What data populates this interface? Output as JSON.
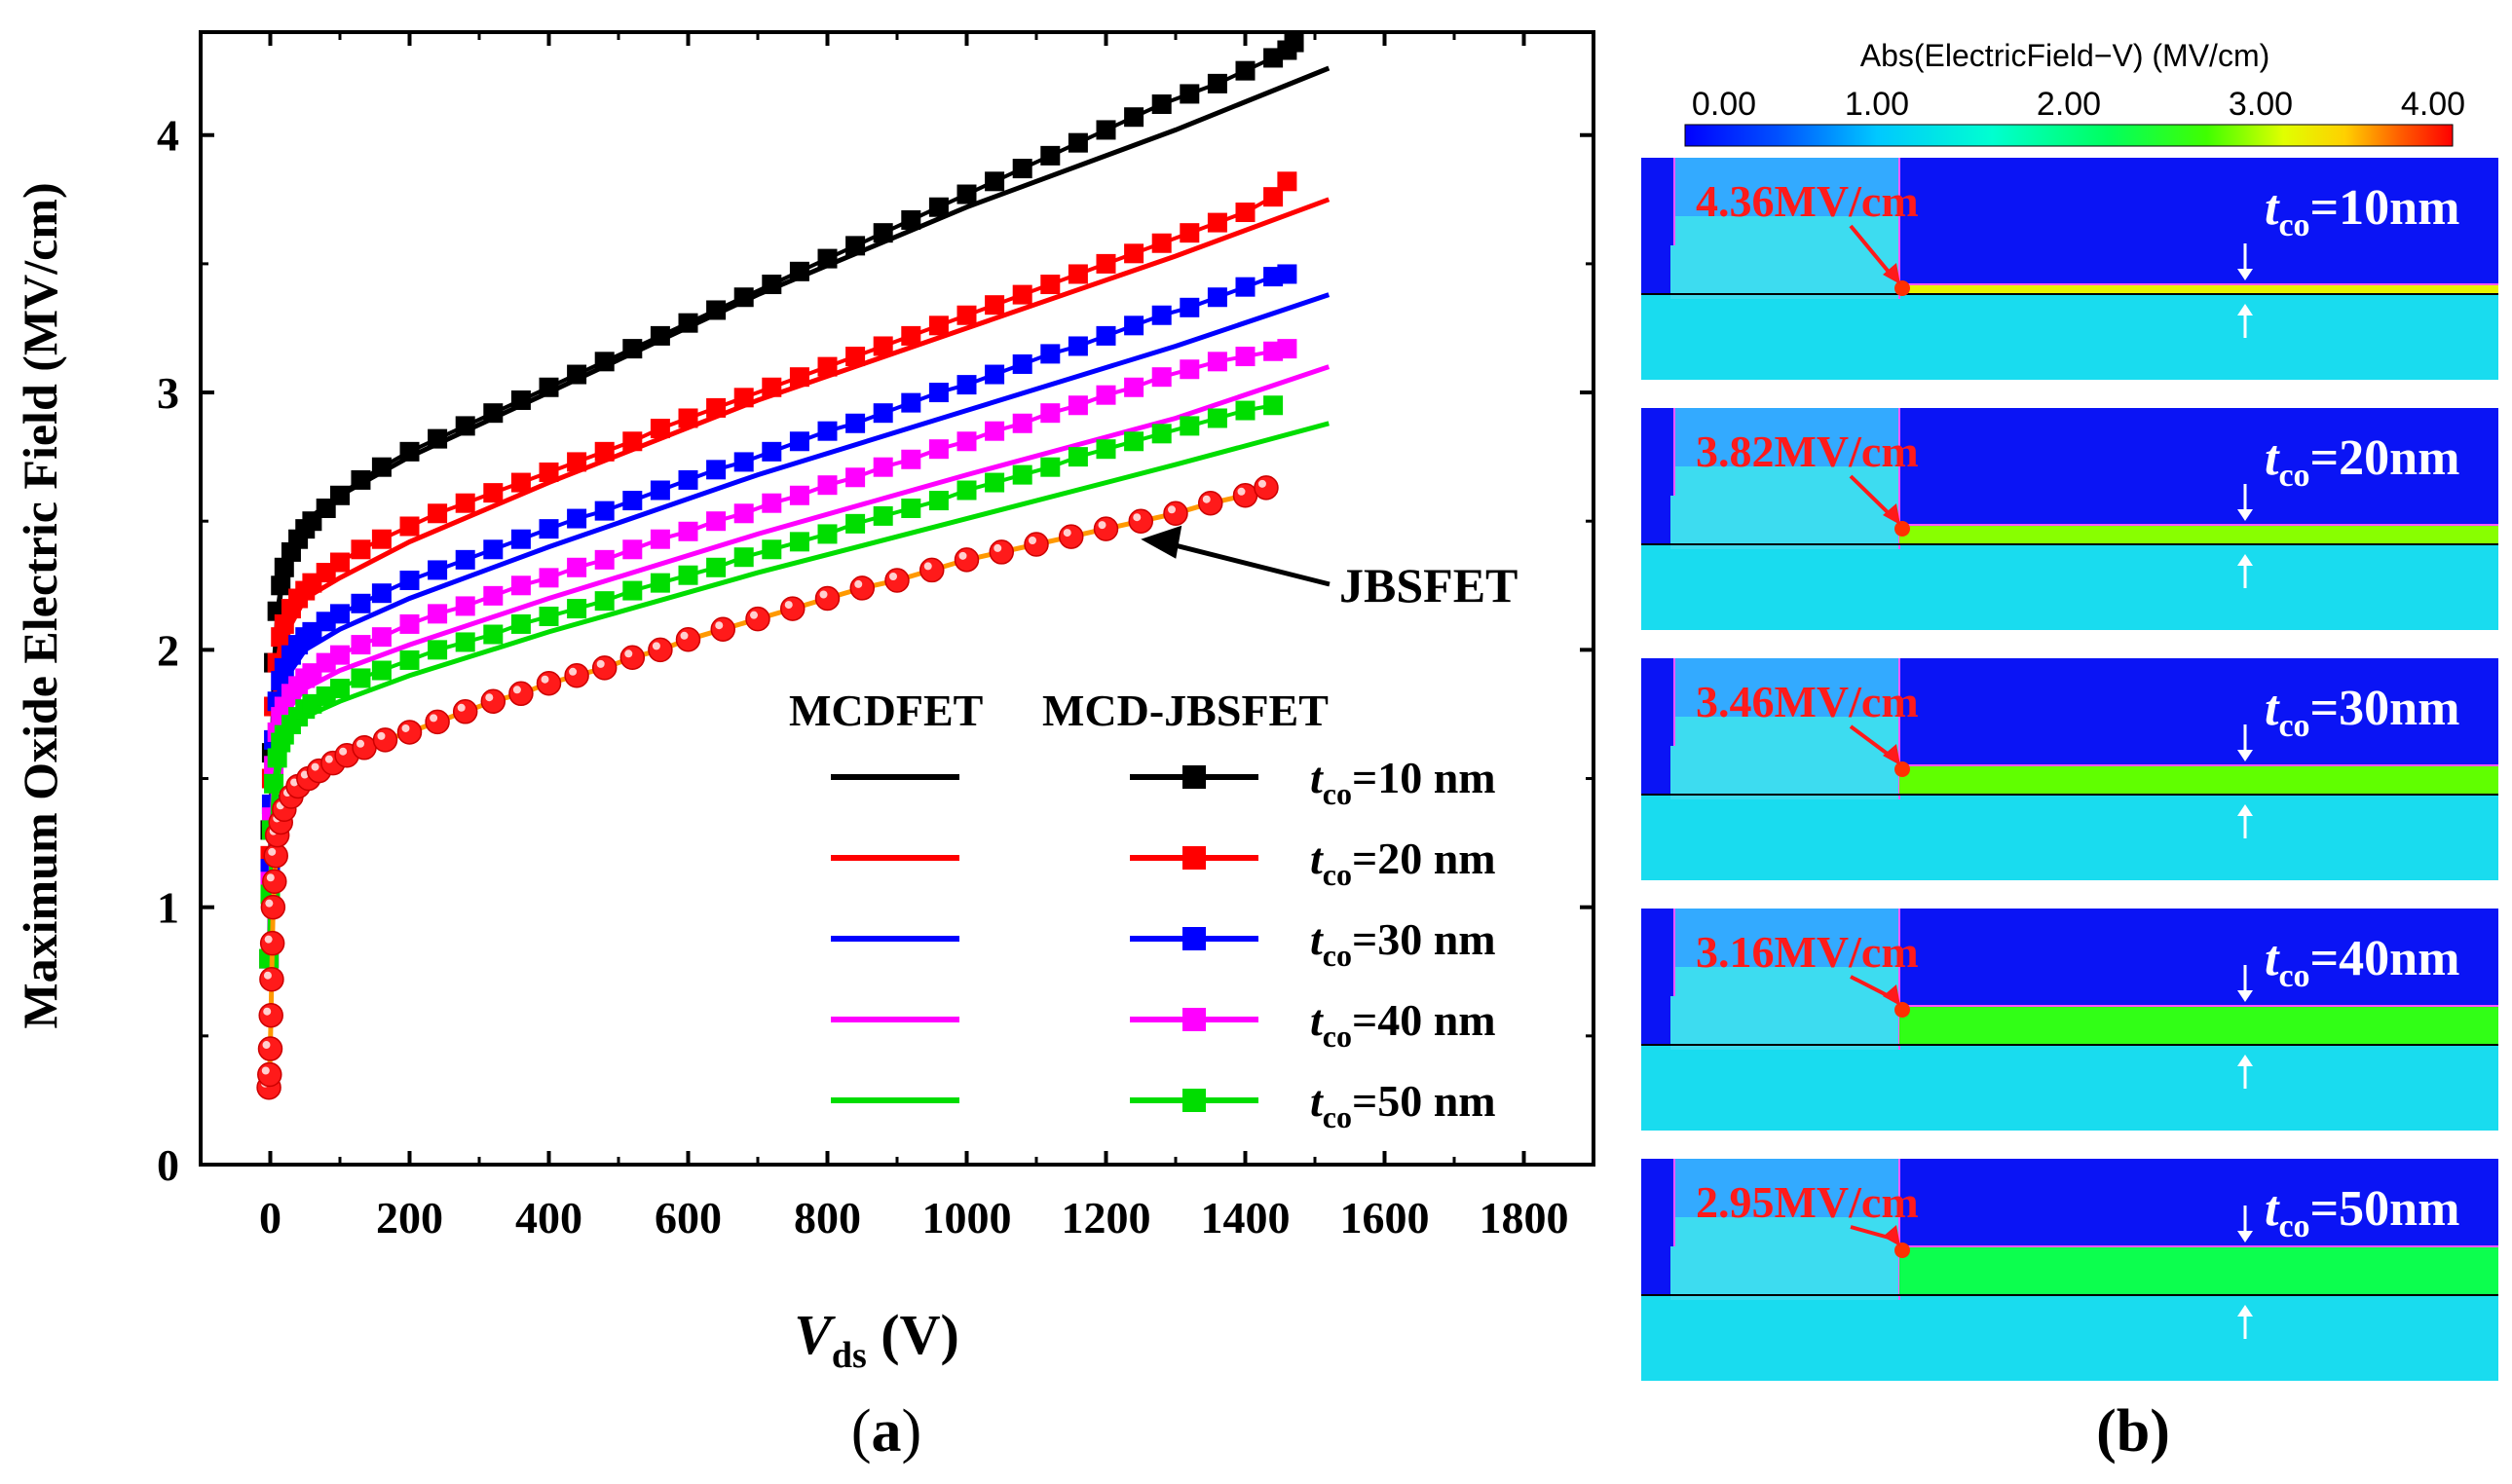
{
  "panel_a": {
    "label_open": "(",
    "label_letter": "a",
    "label_close": ")"
  },
  "panel_b": {
    "label": "(b)",
    "colorbar": {
      "title": "Abs(ElectricField−V) (MV/cm)",
      "ticks": [
        "0.00",
        "1.00",
        "2.00",
        "3.00",
        "4.00"
      ],
      "range": [
        0,
        4
      ]
    },
    "maps": [
      {
        "peak": "4.36MV/cm",
        "t_prefix": "t",
        "t_sub": "co",
        "t_value": "=10nm",
        "channel_value": 3.2
      },
      {
        "peak": "3.82MV/cm",
        "t_prefix": "t",
        "t_sub": "co",
        "t_value": "=20nm",
        "channel_value": 2.9
      },
      {
        "peak": "3.46MV/cm",
        "t_prefix": "t",
        "t_sub": "co",
        "t_value": "=30nm",
        "channel_value": 2.8
      },
      {
        "peak": "3.16MV/cm",
        "t_prefix": "t",
        "t_sub": "co",
        "t_value": "=40nm",
        "channel_value": 2.6
      },
      {
        "peak": "2.95MV/cm",
        "t_prefix": "t",
        "t_sub": "co",
        "t_value": "=50nm",
        "channel_value": 2.3
      }
    ]
  },
  "chart_data": {
    "type": "line",
    "title": "",
    "ylabel": "Maximum Oxide Electric Field (MV/cm)",
    "xlabel_var": "V",
    "xlabel_sub": "ds",
    "xlabel_unit": " (V)",
    "xlim": [
      -100,
      1900
    ],
    "ylim": [
      0,
      4.4
    ],
    "xticks": [
      0,
      200,
      400,
      600,
      800,
      1000,
      1200,
      1400,
      1600,
      1800
    ],
    "yticks": [
      0,
      1,
      2,
      3,
      4
    ],
    "legend": {
      "header_left": "MCDFET",
      "header_right": "MCD-JBSFET",
      "position": "lower-right"
    },
    "annotation": {
      "text": "JBSFET",
      "points_to": [
        1250,
        2.43
      ]
    },
    "series": [
      {
        "name": "t_co=10 nm",
        "t_sub": "co",
        "label_value": "=10 nm",
        "color": "#000000",
        "mcdfet": {
          "x": [
            0,
            5,
            10,
            20,
            50,
            100,
            200,
            400,
            700,
            1000,
            1300,
            1520
          ],
          "y": [
            0.8,
            1.6,
            2.1,
            2.35,
            2.5,
            2.6,
            2.75,
            3.0,
            3.38,
            3.72,
            4.02,
            4.26
          ]
        },
        "jbsfet": {
          "x": [
            -2,
            0,
            2,
            5,
            10,
            15,
            20,
            30,
            40,
            50,
            60,
            80,
            100,
            130,
            160,
            200,
            240,
            280,
            320,
            360,
            400,
            440,
            480,
            520,
            560,
            600,
            640,
            680,
            720,
            760,
            800,
            840,
            880,
            920,
            960,
            1000,
            1040,
            1080,
            1120,
            1160,
            1200,
            1240,
            1280,
            1320,
            1360,
            1400,
            1440,
            1460,
            1470
          ],
          "y": [
            0.8,
            1.3,
            1.6,
            1.95,
            2.15,
            2.25,
            2.32,
            2.38,
            2.43,
            2.47,
            2.5,
            2.55,
            2.6,
            2.66,
            2.71,
            2.77,
            2.82,
            2.87,
            2.92,
            2.97,
            3.02,
            3.07,
            3.12,
            3.17,
            3.22,
            3.27,
            3.32,
            3.37,
            3.42,
            3.47,
            3.52,
            3.57,
            3.62,
            3.67,
            3.72,
            3.77,
            3.82,
            3.87,
            3.92,
            3.97,
            4.02,
            4.07,
            4.12,
            4.16,
            4.2,
            4.25,
            4.3,
            4.33,
            4.36
          ]
        }
      },
      {
        "name": "t_co=20 nm",
        "t_sub": "co",
        "label_value": "=20 nm",
        "color": "#ff0000",
        "mcdfet": {
          "x": [
            0,
            5,
            10,
            20,
            50,
            100,
            200,
            400,
            700,
            1000,
            1300,
            1520
          ],
          "y": [
            0.8,
            1.45,
            1.85,
            2.05,
            2.2,
            2.28,
            2.42,
            2.65,
            2.97,
            3.25,
            3.53,
            3.75
          ]
        },
        "jbsfet": {
          "x": [
            -2,
            0,
            2,
            5,
            10,
            15,
            20,
            30,
            40,
            50,
            60,
            80,
            100,
            130,
            160,
            200,
            240,
            280,
            320,
            360,
            400,
            440,
            480,
            520,
            560,
            600,
            640,
            680,
            720,
            760,
            800,
            840,
            880,
            920,
            960,
            1000,
            1040,
            1080,
            1120,
            1160,
            1200,
            1240,
            1280,
            1320,
            1360,
            1400,
            1440,
            1460
          ],
          "y": [
            0.8,
            1.2,
            1.5,
            1.78,
            1.95,
            2.05,
            2.1,
            2.16,
            2.2,
            2.23,
            2.26,
            2.3,
            2.34,
            2.39,
            2.43,
            2.48,
            2.53,
            2.57,
            2.61,
            2.65,
            2.69,
            2.73,
            2.77,
            2.81,
            2.86,
            2.9,
            2.94,
            2.98,
            3.02,
            3.06,
            3.1,
            3.14,
            3.18,
            3.22,
            3.26,
            3.3,
            3.34,
            3.38,
            3.42,
            3.46,
            3.5,
            3.54,
            3.58,
            3.62,
            3.66,
            3.7,
            3.76,
            3.82
          ]
        }
      },
      {
        "name": "t_co=30 nm",
        "t_sub": "co",
        "label_value": "=30 nm",
        "color": "#0000ff",
        "mcdfet": {
          "x": [
            0,
            5,
            10,
            20,
            50,
            100,
            200,
            400,
            700,
            1000,
            1300,
            1520
          ],
          "y": [
            0.8,
            1.35,
            1.7,
            1.88,
            2.0,
            2.08,
            2.2,
            2.4,
            2.68,
            2.93,
            3.18,
            3.38
          ]
        },
        "jbsfet": {
          "x": [
            -2,
            0,
            2,
            5,
            10,
            15,
            20,
            30,
            40,
            50,
            60,
            80,
            100,
            130,
            160,
            200,
            240,
            280,
            320,
            360,
            400,
            440,
            480,
            520,
            560,
            600,
            640,
            680,
            720,
            760,
            800,
            840,
            880,
            920,
            960,
            1000,
            1040,
            1080,
            1120,
            1160,
            1200,
            1240,
            1280,
            1320,
            1360,
            1400,
            1440,
            1460
          ],
          "y": [
            0.8,
            1.15,
            1.4,
            1.65,
            1.8,
            1.88,
            1.93,
            1.98,
            2.02,
            2.05,
            2.07,
            2.11,
            2.14,
            2.18,
            2.22,
            2.27,
            2.31,
            2.35,
            2.39,
            2.43,
            2.47,
            2.51,
            2.54,
            2.58,
            2.62,
            2.66,
            2.7,
            2.73,
            2.77,
            2.81,
            2.85,
            2.88,
            2.92,
            2.96,
            3.0,
            3.03,
            3.07,
            3.11,
            3.15,
            3.18,
            3.22,
            3.26,
            3.3,
            3.33,
            3.37,
            3.41,
            3.45,
            3.46
          ]
        }
      },
      {
        "name": "t_co=40 nm",
        "t_sub": "co",
        "label_value": "=40 nm",
        "color": "#ff00ff",
        "mcdfet": {
          "x": [
            0,
            5,
            10,
            20,
            50,
            100,
            200,
            400,
            700,
            1000,
            1300,
            1520
          ],
          "y": [
            0.8,
            1.3,
            1.6,
            1.75,
            1.85,
            1.92,
            2.02,
            2.2,
            2.45,
            2.68,
            2.9,
            3.1
          ]
        },
        "jbsfet": {
          "x": [
            -2,
            0,
            2,
            5,
            10,
            15,
            20,
            30,
            40,
            50,
            60,
            80,
            100,
            130,
            160,
            200,
            240,
            280,
            320,
            360,
            400,
            440,
            480,
            520,
            560,
            600,
            640,
            680,
            720,
            760,
            800,
            840,
            880,
            920,
            960,
            1000,
            1040,
            1080,
            1120,
            1160,
            1200,
            1240,
            1280,
            1320,
            1360,
            1400,
            1440,
            1460
          ],
          "y": [
            0.8,
            1.1,
            1.35,
            1.55,
            1.68,
            1.74,
            1.78,
            1.83,
            1.86,
            1.89,
            1.91,
            1.95,
            1.98,
            2.02,
            2.05,
            2.1,
            2.14,
            2.17,
            2.21,
            2.25,
            2.28,
            2.32,
            2.35,
            2.39,
            2.43,
            2.46,
            2.5,
            2.53,
            2.57,
            2.6,
            2.64,
            2.67,
            2.71,
            2.74,
            2.78,
            2.81,
            2.85,
            2.88,
            2.92,
            2.95,
            2.99,
            3.02,
            3.06,
            3.09,
            3.12,
            3.14,
            3.16,
            3.17
          ]
        }
      },
      {
        "name": "t_co=50 nm",
        "t_sub": "co",
        "label_value": "=50 nm",
        "color": "#00dd00",
        "mcdfet": {
          "x": [
            0,
            5,
            10,
            20,
            50,
            100,
            200,
            400,
            700,
            1000,
            1300,
            1520
          ],
          "y": [
            0.8,
            1.25,
            1.5,
            1.65,
            1.74,
            1.8,
            1.9,
            2.07,
            2.3,
            2.51,
            2.72,
            2.88
          ]
        },
        "jbsfet": {
          "x": [
            -2,
            0,
            2,
            5,
            10,
            15,
            20,
            30,
            40,
            50,
            60,
            80,
            100,
            130,
            160,
            200,
            240,
            280,
            320,
            360,
            400,
            440,
            480,
            520,
            560,
            600,
            640,
            680,
            720,
            760,
            800,
            840,
            880,
            920,
            960,
            1000,
            1040,
            1080,
            1120,
            1160,
            1200,
            1240,
            1280,
            1320,
            1360,
            1400,
            1440
          ],
          "y": [
            0.8,
            1.05,
            1.3,
            1.48,
            1.58,
            1.64,
            1.67,
            1.71,
            1.74,
            1.77,
            1.79,
            1.82,
            1.85,
            1.89,
            1.92,
            1.96,
            2.0,
            2.03,
            2.06,
            2.1,
            2.13,
            2.16,
            2.19,
            2.23,
            2.26,
            2.29,
            2.32,
            2.36,
            2.39,
            2.42,
            2.45,
            2.49,
            2.52,
            2.55,
            2.58,
            2.62,
            2.65,
            2.68,
            2.71,
            2.75,
            2.78,
            2.81,
            2.84,
            2.87,
            2.9,
            2.93,
            2.95
          ]
        }
      },
      {
        "name": "JBSFET",
        "color": "#ff0000",
        "line_color": "#ff9900",
        "jbsfet": {
          "x": [
            -2,
            -1,
            0,
            1,
            2,
            3,
            4,
            6,
            8,
            10,
            15,
            20,
            30,
            40,
            55,
            70,
            90,
            110,
            135,
            165,
            200,
            240,
            280,
            320,
            360,
            400,
            440,
            480,
            520,
            560,
            600,
            650,
            700,
            750,
            800,
            850,
            900,
            950,
            1000,
            1050,
            1100,
            1150,
            1200,
            1250,
            1300,
            1350,
            1400,
            1430
          ],
          "y": [
            0.3,
            0.35,
            0.45,
            0.58,
            0.72,
            0.86,
            1.0,
            1.1,
            1.2,
            1.28,
            1.33,
            1.38,
            1.43,
            1.47,
            1.5,
            1.53,
            1.56,
            1.59,
            1.62,
            1.65,
            1.68,
            1.72,
            1.76,
            1.8,
            1.83,
            1.87,
            1.9,
            1.93,
            1.97,
            2.0,
            2.04,
            2.08,
            2.12,
            2.16,
            2.2,
            2.24,
            2.27,
            2.31,
            2.35,
            2.38,
            2.41,
            2.44,
            2.47,
            2.5,
            2.53,
            2.57,
            2.6,
            2.63
          ]
        }
      }
    ]
  }
}
